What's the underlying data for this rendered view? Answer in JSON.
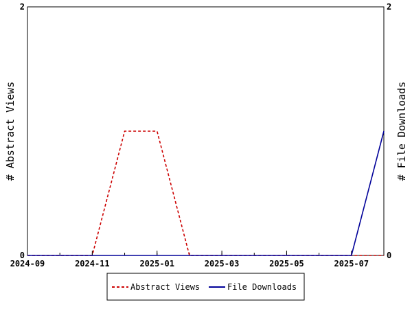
{
  "chart_data": {
    "type": "line",
    "x_axis": {
      "type": "date",
      "range": [
        "2024-09-01",
        "2025-08-01"
      ],
      "tick_labels": [
        "2024-09",
        "2024-11",
        "2025-01",
        "2025-03",
        "2025-05",
        "2025-07"
      ],
      "minor_ticks": "monthly"
    },
    "y_left": {
      "label": "# Abstract Views",
      "range": [
        0,
        2
      ],
      "tick_labels": [
        "0",
        "2"
      ]
    },
    "y_right": {
      "label": "# File Downloads",
      "range": [
        0,
        2
      ],
      "tick_labels": [
        "0",
        "2"
      ]
    },
    "grid": false,
    "legend": {
      "placement": "bottom-center"
    },
    "series": [
      {
        "name": "Abstract Views",
        "axis": "left",
        "color": "#cc0000",
        "dash": "dashed",
        "points": [
          {
            "x": "2024-09-01",
            "y": 0
          },
          {
            "x": "2024-10-01",
            "y": 0
          },
          {
            "x": "2024-11-01",
            "y": 0
          },
          {
            "x": "2024-12-01",
            "y": 1
          },
          {
            "x": "2025-01-01",
            "y": 1
          },
          {
            "x": "2025-02-01",
            "y": 0
          },
          {
            "x": "2025-03-01",
            "y": 0
          },
          {
            "x": "2025-04-01",
            "y": 0
          },
          {
            "x": "2025-05-01",
            "y": 0
          },
          {
            "x": "2025-06-01",
            "y": 0
          },
          {
            "x": "2025-07-01",
            "y": 0
          },
          {
            "x": "2025-08-01",
            "y": 0
          }
        ]
      },
      {
        "name": "File Downloads",
        "axis": "right",
        "color": "#000099",
        "dash": "solid",
        "points": [
          {
            "x": "2024-09-01",
            "y": 0
          },
          {
            "x": "2024-10-01",
            "y": 0
          },
          {
            "x": "2024-11-01",
            "y": 0
          },
          {
            "x": "2024-12-01",
            "y": 0
          },
          {
            "x": "2025-01-01",
            "y": 0
          },
          {
            "x": "2025-02-01",
            "y": 0
          },
          {
            "x": "2025-03-01",
            "y": 0
          },
          {
            "x": "2025-04-01",
            "y": 0
          },
          {
            "x": "2025-05-01",
            "y": 0
          },
          {
            "x": "2025-06-01",
            "y": 0
          },
          {
            "x": "2025-07-01",
            "y": 0
          },
          {
            "x": "2025-08-01",
            "y": 1
          }
        ]
      }
    ]
  }
}
